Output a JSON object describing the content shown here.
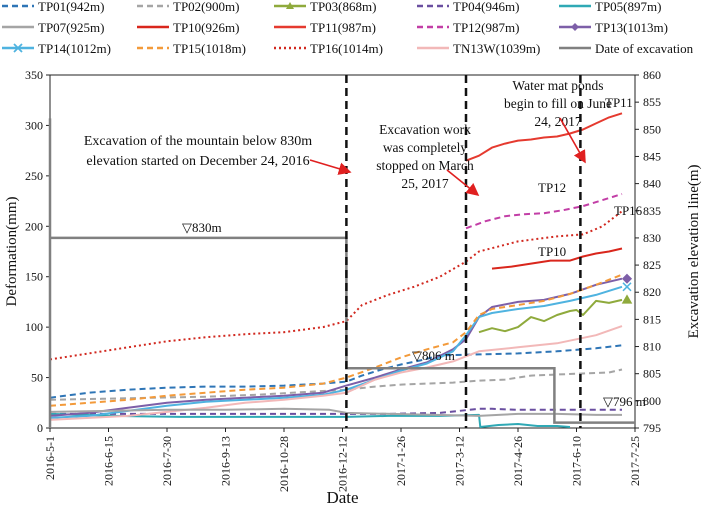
{
  "chart_data": {
    "type": "line",
    "xlabel": "Date",
    "ylabel": "Deformation(mm)",
    "y2label": "Excavation elevation line(m)",
    "x_ticks": [
      "2016-5-1",
      "2016-6-15",
      "2016-7-30",
      "2016-9-13",
      "2016-10-28",
      "2016-12-12",
      "2017-1-26",
      "2017-3-12",
      "2017-4-26",
      "2017-6-10",
      "2017-7-25"
    ],
    "x_range_days": [
      0,
      450
    ],
    "x_tick_step_days": 45,
    "ylim": [
      0,
      350
    ],
    "y_ticks": [
      "0",
      "50",
      "100",
      "150",
      "200",
      "250",
      "300",
      "350"
    ],
    "y2lim": [
      795,
      860
    ],
    "y2_ticks": [
      "795",
      "800",
      "805",
      "810",
      "815",
      "820",
      "825",
      "830",
      "835",
      "840",
      "845",
      "850",
      "855",
      "860"
    ],
    "legend": [
      {
        "id": "TP01",
        "label": "TP01(942m)",
        "color": "#2e75b6",
        "dash": "dash",
        "marker": "none"
      },
      {
        "id": "TP02",
        "label": "TP02(900m)",
        "color": "#a5a5a5",
        "dash": "dash",
        "marker": "none"
      },
      {
        "id": "TP03",
        "label": "TP03(868m)",
        "color": "#8faa3c",
        "dash": "solid",
        "marker": "triangle"
      },
      {
        "id": "TP04",
        "label": "TP04(946m)",
        "color": "#6a4fa0",
        "dash": "dash",
        "marker": "none"
      },
      {
        "id": "TP05",
        "label": "TP05(897m)",
        "color": "#2fa9b5",
        "dash": "solid",
        "marker": "none"
      },
      {
        "id": "TP07",
        "label": "TP07(925m)",
        "color": "#a5a5a5",
        "dash": "solid",
        "marker": "none"
      },
      {
        "id": "TP10",
        "label": "TP10(926m)",
        "color": "#d9261c",
        "dash": "solid",
        "marker": "none"
      },
      {
        "id": "TP11",
        "label": "TP11(987m)",
        "color": "#e53a2f",
        "dash": "solid",
        "marker": "none"
      },
      {
        "id": "TP12",
        "label": "TP12(987m)",
        "color": "#c23ea6",
        "dash": "dash",
        "marker": "none"
      },
      {
        "id": "TP13",
        "label": "TP13(1013m)",
        "color": "#7d5fa8",
        "dash": "solid",
        "marker": "diamond"
      },
      {
        "id": "TP14",
        "label": "TP14(1012m)",
        "color": "#4fb3e0",
        "dash": "solid",
        "marker": "cross"
      },
      {
        "id": "TP15",
        "label": "TP15(1018m)",
        "color": "#f39a3a",
        "dash": "dash",
        "marker": "none"
      },
      {
        "id": "TP16",
        "label": "TP16(1014m)",
        "color": "#d1281f",
        "dash": "dot",
        "marker": "none"
      },
      {
        "id": "TN13W",
        "label": "TN13W(1039m)",
        "color": "#f2b8b8",
        "dash": "solid",
        "marker": "none"
      },
      {
        "id": "EXC",
        "label": "Date of excavation",
        "color": "#808080",
        "dash": "solid",
        "marker": "none"
      }
    ],
    "series": [
      {
        "id": "TP01",
        "days": [
          0,
          30,
          60,
          90,
          120,
          150,
          180,
          210,
          228,
          240,
          255,
          270,
          285,
          300,
          330,
          360,
          390,
          420,
          440
        ],
        "values": [
          30,
          35,
          38,
          40,
          41,
          41,
          42,
          44,
          46,
          52,
          58,
          63,
          67,
          72,
          73,
          74,
          76,
          79,
          82
        ]
      },
      {
        "id": "TP02",
        "days": [
          0,
          40,
          80,
          120,
          160,
          200,
          228,
          250,
          270,
          290,
          310,
          330,
          350,
          370,
          390,
          410,
          430,
          440
        ],
        "values": [
          28,
          29,
          30,
          31,
          33,
          36,
          38,
          41,
          43,
          44,
          45,
          47,
          48,
          52,
          53,
          54,
          55,
          58
        ]
      },
      {
        "id": "TP03",
        "days": [
          330,
          340,
          350,
          360,
          370,
          380,
          390,
          400,
          405,
          410,
          420,
          430,
          440
        ],
        "values": [
          95,
          99,
          96,
          100,
          110,
          106,
          112,
          116,
          117,
          112,
          126,
          124,
          127
        ]
      },
      {
        "id": "TP04",
        "days": [
          0,
          50,
          100,
          150,
          200,
          228,
          260,
          300,
          330,
          340,
          360,
          380,
          400,
          420,
          440
        ],
        "values": [
          14,
          14,
          14,
          14,
          14,
          14,
          14,
          15,
          19,
          19,
          18,
          18,
          18,
          18,
          18
        ]
      },
      {
        "id": "TP05",
        "days": [
          0,
          50,
          100,
          150,
          200,
          228,
          260,
          300,
          330,
          331,
          345,
          360,
          375,
          390,
          400
        ],
        "values": [
          14,
          12,
          11,
          11,
          11,
          11,
          12,
          12,
          13,
          1,
          3,
          4,
          2,
          2,
          1
        ]
      },
      {
        "id": "TP10",
        "days": [
          340,
          355,
          370,
          385,
          400,
          410,
          420,
          430,
          440
        ],
        "values": [
          158,
          160,
          163,
          166,
          166,
          170,
          173,
          175,
          178
        ]
      },
      {
        "id": "TP11",
        "days": [
          320,
          330,
          340,
          350,
          360,
          370,
          380,
          390,
          400,
          410,
          420,
          430,
          440
        ],
        "values": [
          265,
          270,
          278,
          282,
          285,
          286,
          288,
          289,
          292,
          296,
          302,
          308,
          312
        ]
      },
      {
        "id": "TP12",
        "days": [
          320,
          335,
          350,
          365,
          380,
          395,
          410,
          425,
          440
        ],
        "values": [
          198,
          205,
          210,
          212,
          213,
          216,
          220,
          226,
          232
        ]
      },
      {
        "id": "TP13",
        "days": [
          0,
          30,
          60,
          90,
          120,
          150,
          180,
          210,
          228,
          250,
          270,
          290,
          310,
          320,
          330,
          340,
          360,
          380,
          400,
          420,
          440
        ],
        "values": [
          12,
          15,
          20,
          25,
          28,
          30,
          32,
          35,
          42,
          50,
          58,
          65,
          78,
          88,
          110,
          120,
          125,
          127,
          133,
          142,
          148
        ]
      },
      {
        "id": "TP14",
        "days": [
          0,
          30,
          60,
          90,
          120,
          150,
          180,
          210,
          228,
          250,
          270,
          290,
          310,
          320,
          330,
          340,
          360,
          380,
          400,
          420,
          440
        ],
        "values": [
          10,
          12,
          17,
          22,
          26,
          28,
          30,
          33,
          38,
          48,
          57,
          64,
          76,
          92,
          110,
          114,
          118,
          121,
          126,
          132,
          140
        ]
      },
      {
        "id": "TP15",
        "days": [
          0,
          30,
          60,
          90,
          120,
          150,
          180,
          210,
          228,
          250,
          270,
          290,
          310,
          320,
          330,
          340,
          360,
          380,
          400,
          420,
          440
        ],
        "values": [
          22,
          25,
          28,
          32,
          35,
          38,
          40,
          44,
          50,
          60,
          70,
          78,
          85,
          95,
          112,
          118,
          122,
          126,
          133,
          142,
          152
        ]
      },
      {
        "id": "TP16",
        "days": [
          0,
          30,
          60,
          90,
          120,
          150,
          180,
          210,
          228,
          240,
          260,
          280,
          300,
          320,
          330,
          360,
          390,
          410,
          425,
          440
        ],
        "values": [
          68,
          74,
          80,
          86,
          90,
          93,
          95,
          100,
          106,
          122,
          132,
          140,
          150,
          165,
          175,
          185,
          190,
          192,
          200,
          215
        ]
      },
      {
        "id": "TN13W",
        "days": [
          0,
          30,
          60,
          90,
          120,
          150,
          180,
          210,
          228,
          250,
          270,
          290,
          310,
          330,
          360,
          390,
          420,
          440
        ],
        "values": [
          8,
          10,
          12,
          16,
          20,
          25,
          28,
          32,
          35,
          48,
          55,
          60,
          66,
          76,
          80,
          84,
          92,
          101
        ]
      },
      {
        "id": "TP07",
        "days": [
          0,
          45,
          90,
          135,
          180,
          215,
          228,
          330,
          345,
          360,
          390,
          420,
          440
        ],
        "values": [
          16,
          17,
          18,
          18,
          19,
          18,
          15,
          12,
          13,
          14,
          14,
          13,
          13
        ]
      }
    ],
    "excavation_elevation": {
      "days": [
        0,
        0,
        0,
        228,
        228,
        388,
        388,
        450
      ],
      "values_m": [
        795,
        852,
        830,
        830,
        806,
        806,
        796,
        796
      ],
      "units": "m"
    },
    "vertical_markers_days": [
      228,
      320,
      408
    ],
    "annotations": [
      {
        "id": "ann1",
        "lines": [
          "Excavation of the mountain below 830m",
          "elevation started on December 24, 2016"
        ]
      },
      {
        "id": "ann2",
        "lines": [
          "Excavation work",
          "was completely",
          "stopped on March",
          "25, 2017"
        ]
      },
      {
        "id": "ann3",
        "lines": [
          "Water mat ponds",
          "begin to fill on June",
          "24, 2017"
        ]
      },
      {
        "id": "lbl830",
        "text": "▽830m"
      },
      {
        "id": "lbl806",
        "text": "▽806 m"
      },
      {
        "id": "lbl796",
        "text": "▽796 m"
      },
      {
        "id": "lblTP11",
        "text": "TP11"
      },
      {
        "id": "lblTP12",
        "text": "TP12"
      },
      {
        "id": "lblTP16",
        "text": "TP16"
      },
      {
        "id": "lblTP10",
        "text": "TP10"
      }
    ]
  }
}
